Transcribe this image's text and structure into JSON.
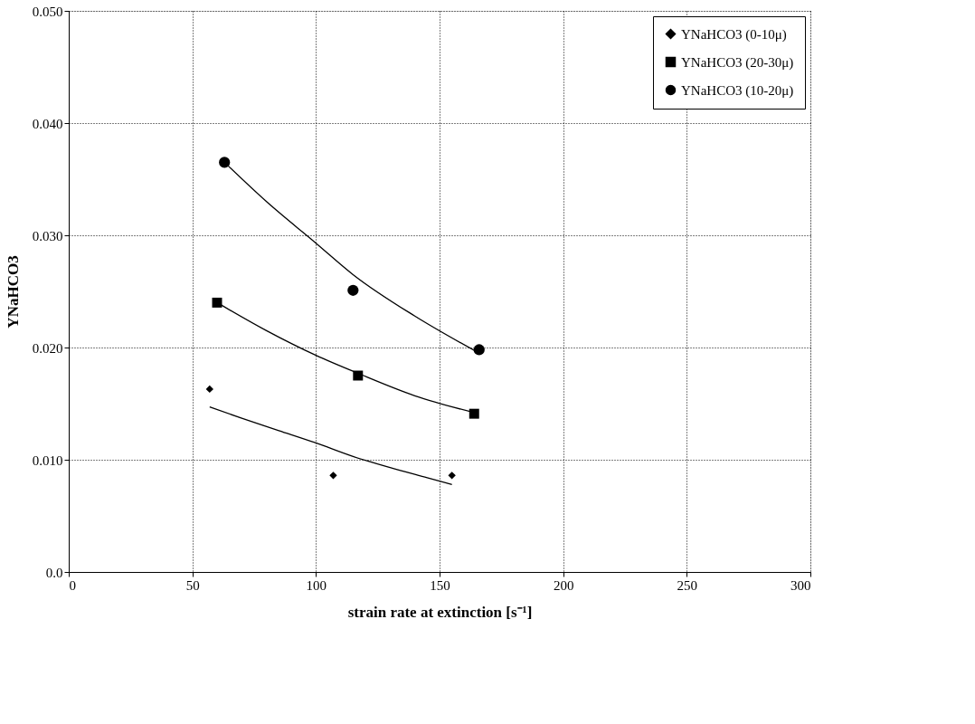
{
  "chart_data": {
    "type": "scatter",
    "xlabel": "strain rate at extinction [s⁻¹]",
    "ylabel": "YNaHCO3",
    "xlim": [
      0,
      300
    ],
    "xticks": [
      0,
      50,
      100,
      150,
      200,
      250,
      300
    ],
    "ylim": [
      0,
      0.05
    ],
    "yticks": [
      {
        "value": 0,
        "label": "0.0"
      },
      {
        "value": 0.01,
        "label": "0.010"
      },
      {
        "value": 0.02,
        "label": "0.020"
      },
      {
        "value": 0.03,
        "label": "0.030"
      },
      {
        "value": 0.04,
        "label": "0.040"
      },
      {
        "value": 0.05,
        "label": "0.050"
      }
    ],
    "grid": true,
    "legend": "top right",
    "line_style": "solid",
    "series": [
      {
        "name": "YNaHCO3 (0-10μ)",
        "marker": "diamond",
        "color": "#000000",
        "x": [
          57,
          107,
          155
        ],
        "values": [
          0.0163,
          0.0086,
          0.0086
        ]
      },
      {
        "name": "YNaHCO3 (20-30μ)",
        "marker": "square",
        "color": "#000000",
        "x": [
          60,
          117,
          164
        ],
        "values": [
          0.024,
          0.0175,
          0.0141
        ]
      },
      {
        "name": "YNaHCO3 (10-20μ)",
        "marker": "circle",
        "color": "#000000",
        "x": [
          63,
          115,
          166
        ],
        "values": [
          0.0365,
          0.0251,
          0.0198
        ]
      },
      {
        "type": "line",
        "color": "#000000",
        "x": [
          57,
          70,
          85,
          100,
          115,
          130,
          145,
          155
        ],
        "values": [
          0.0147,
          0.0137,
          0.0126,
          0.0115,
          0.0103,
          0.0093,
          0.0084,
          0.0078
        ]
      },
      {
        "type": "line",
        "color": "#000000",
        "x": [
          60,
          80,
          100,
          117,
          140,
          164
        ],
        "values": [
          0.024,
          0.0215,
          0.0193,
          0.0177,
          0.0157,
          0.0142
        ]
      },
      {
        "type": "line",
        "color": "#000000",
        "x": [
          63,
          80,
          100,
          115,
          140,
          166
        ],
        "values": [
          0.0365,
          0.033,
          0.0293,
          0.0265,
          0.0228,
          0.0195
        ]
      }
    ]
  }
}
